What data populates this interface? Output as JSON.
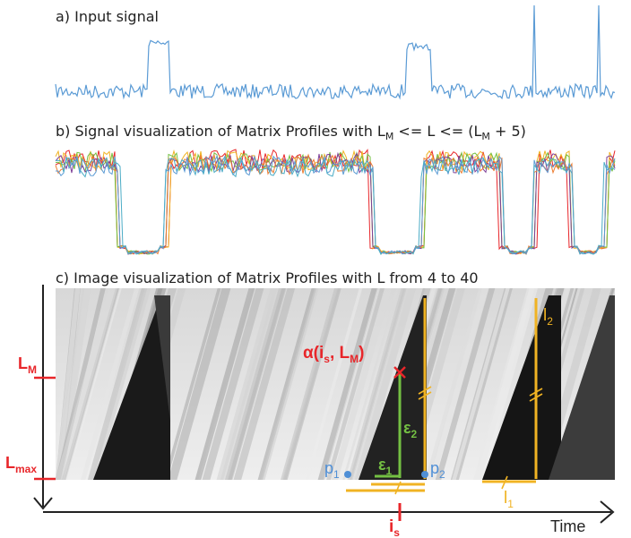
{
  "panel_a": {
    "label": "a) Input signal"
  },
  "panel_b": {
    "label_prefix": "b) Signal visualization of Matrix Profiles with L",
    "label_sub1": "M",
    "label_mid": " <= L <= (L",
    "label_sub2": "M",
    "label_suffix": " + 5)"
  },
  "panel_c": {
    "label": "c) Image visualization of Matrix Profiles with L from 4 to 40"
  },
  "annotations": {
    "alpha_main": "α(i",
    "alpha_sub1": "s",
    "alpha_mid": ", L",
    "alpha_sub2": "M",
    "alpha_end": ")",
    "lm_main": "L",
    "lm_sub": "M",
    "lmax_main": "L",
    "lmax_sub": "max",
    "eps1_main": "ε",
    "eps1_sub": "1",
    "eps2_main": "ε",
    "eps2_sub": "2",
    "p1_main": "p",
    "p1_sub": "1",
    "p2_main": "p",
    "p2_sub": "2",
    "l1_main": "l",
    "l1_sub": "1",
    "l2_main": "l",
    "l2_sub": "2",
    "is_main": "i",
    "is_sub": "s",
    "time_label": "Time"
  },
  "colors": {
    "signal": "#5b9bd5",
    "red": "#e8262a",
    "orange": "#f0b323",
    "green": "#74c043",
    "blue_point": "#4f8fd6",
    "series": [
      "#e8262a",
      "#f0b323",
      "#74c043",
      "#7e3f98",
      "#ed7d31",
      "#5b9bd5",
      "#4bacc6"
    ]
  }
}
